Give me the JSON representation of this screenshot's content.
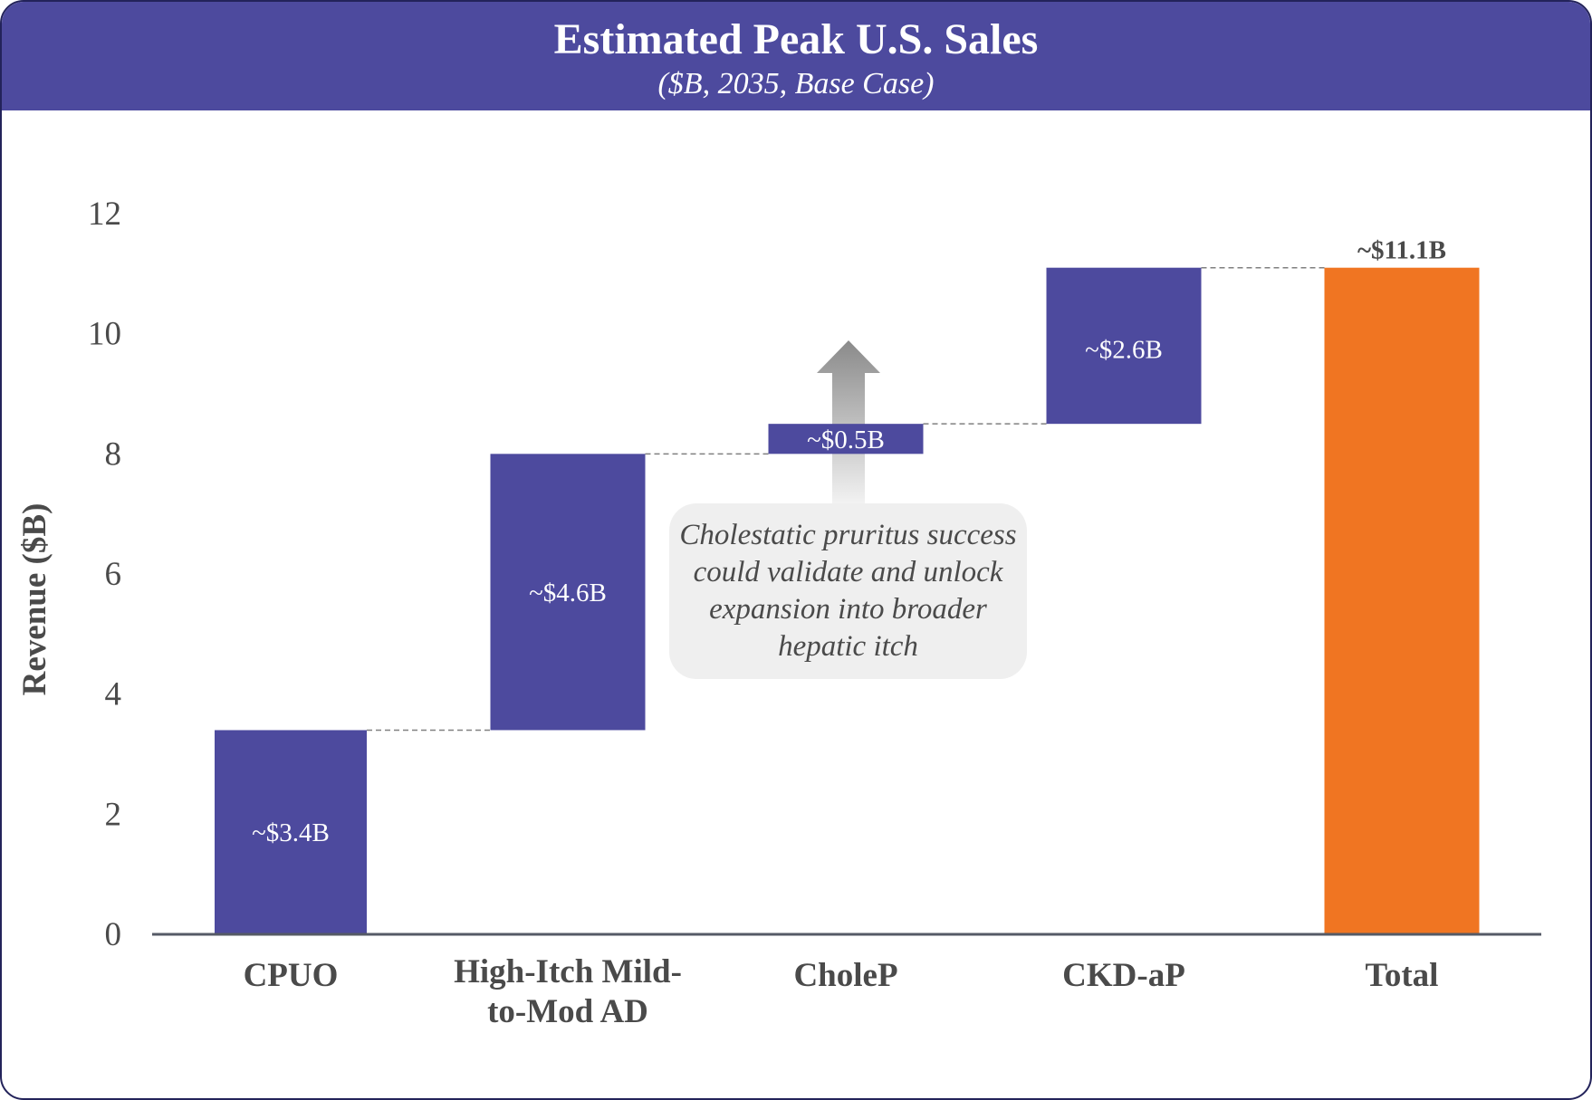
{
  "header": {
    "title": "Estimated Peak U.S. Sales",
    "subtitle": "($B, 2035, Base Case)"
  },
  "callout": {
    "text": "Cholestatic pruritus success could validate and unlock expansion into broader hepatic itch"
  },
  "colors": {
    "header_bg": "#4d4a9e",
    "segment": "#4d4a9e",
    "total": "#f07522",
    "axis": "#555a66",
    "connector": "#808080"
  },
  "chart_data": {
    "type": "bar",
    "subtype": "waterfall",
    "title": "Estimated Peak U.S. Sales",
    "subtitle": "($B, 2035, Base Case)",
    "ylabel": "Revenue ($B)",
    "xlabel": "",
    "ylim": [
      0,
      12
    ],
    "yticks": [
      0,
      2,
      4,
      6,
      8,
      10,
      12
    ],
    "grid": false,
    "categories": [
      "CPUO",
      "High-Itch Mild-to-Mod AD",
      "CholeP",
      "CKD-aP",
      "Total"
    ],
    "category_lines": [
      [
        "CPUO"
      ],
      [
        "High-Itch Mild-",
        "to-Mod AD"
      ],
      [
        "CholeP"
      ],
      [
        "CKD-aP"
      ],
      [
        "Total"
      ]
    ],
    "values": [
      3.4,
      4.6,
      0.5,
      2.6,
      11.1
    ],
    "bases": [
      0,
      3.4,
      8.0,
      8.5,
      0
    ],
    "is_total": [
      false,
      false,
      false,
      false,
      true
    ],
    "labels": [
      "~$3.4B",
      "~$4.6B",
      "~$0.5B",
      "~$2.6B",
      "~$11.1B"
    ]
  }
}
